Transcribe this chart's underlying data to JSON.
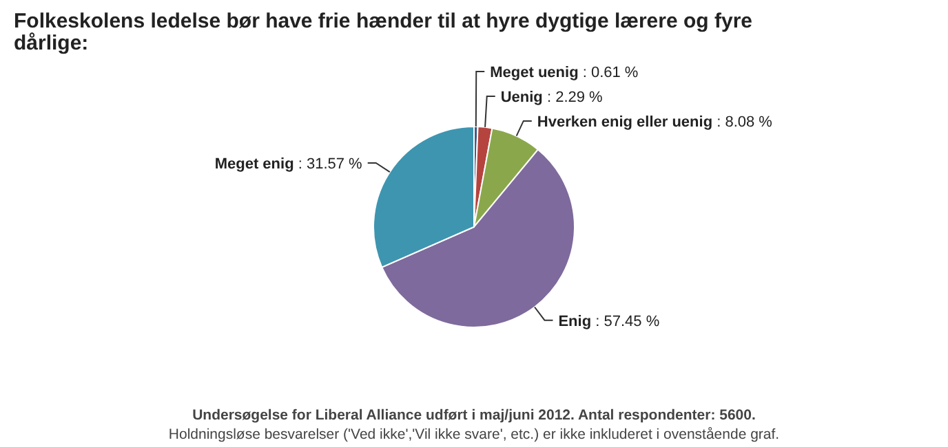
{
  "chart_data": {
    "type": "pie",
    "title": "Folkeskolens ledelse bør have frie hænder til at hyre dygtige lærere og fyre dårlige:",
    "categories": [
      "Meget uenig",
      "Uenig",
      "Hverken enig eller uenig",
      "Enig",
      "Meget enig"
    ],
    "values": [
      0.61,
      2.29,
      8.08,
      57.45,
      31.57
    ],
    "colors": [
      "#3a5f8f",
      "#b5443f",
      "#8aa84b",
      "#7e6a9c",
      "#3e95b0"
    ],
    "data_labels": true,
    "value_labels": [
      ": 0.61 %",
      ": 2.29 %",
      ": 8.08 %",
      ": 57.45 %",
      ": 31.57 %"
    ],
    "annotations": [
      "Undersøgelse for Liberal Alliance udført i maj/juni 2012. Antal respondenter: 5600.",
      "Holdningsløse besvarelser ('Ved ikke','Vil ikke svare', etc.) er ikke inkluderet i ovenstående graf."
    ]
  }
}
